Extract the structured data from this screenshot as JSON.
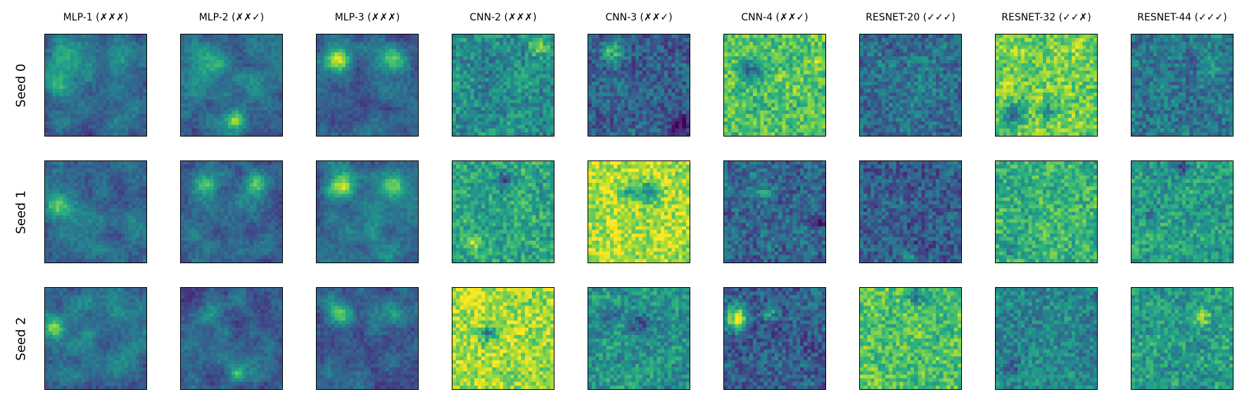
{
  "chart_data": {
    "type": "heatmap",
    "colormap": "viridis",
    "grid": false,
    "ticks": false,
    "columns": [
      "MLP-1 (✗✗✗)",
      "MLP-2 (✗✗✓)",
      "MLP-3 (✗✗✗)",
      "CNN-2 (✗✗✗)",
      "CNN-3 (✗✗✓)",
      "CNN-4 (✗✗✓)",
      "RESNET-20 (✓✓✓)",
      "RESNET-32 (✓✓✗)",
      "RESNET-44 (✓✓✓)"
    ],
    "rows": [
      "Seed 0",
      "Seed 1",
      "Seed 2"
    ],
    "grid_size": 28,
    "panels": [
      [
        {
          "mean": 0.35,
          "texture": "smooth",
          "spots": [
            [
              0.2,
              0.3,
              0.12,
              0.25
            ],
            [
              0.75,
              0.25,
              0.1,
              0.2
            ],
            [
              0.12,
              0.5,
              0.08,
              0.3
            ]
          ]
        },
        {
          "mean": 0.38,
          "texture": "smooth",
          "spots": [
            [
              0.55,
              0.85,
              0.06,
              0.55
            ],
            [
              0.3,
              0.3,
              0.1,
              0.25
            ]
          ]
        },
        {
          "mean": 0.33,
          "texture": "smooth",
          "spots": [
            [
              0.22,
              0.25,
              0.08,
              0.55
            ],
            [
              0.75,
              0.25,
              0.08,
              0.4
            ],
            [
              0.5,
              0.7,
              0.1,
              -0.2
            ]
          ]
        },
        {
          "mean": 0.5,
          "texture": "fine",
          "spots": [
            [
              0.85,
              0.12,
              0.07,
              0.3
            ],
            [
              0.3,
              0.35,
              0.08,
              -0.15
            ]
          ]
        },
        {
          "mean": 0.3,
          "texture": "fine",
          "spots": [
            [
              0.25,
              0.15,
              0.08,
              0.35
            ],
            [
              0.9,
              0.9,
              0.07,
              -0.3
            ]
          ]
        },
        {
          "mean": 0.72,
          "texture": "fine",
          "spots": [
            [
              0.25,
              0.35,
              0.09,
              -0.35
            ],
            [
              0.9,
              0.3,
              0.08,
              0.15
            ]
          ]
        },
        {
          "mean": 0.35,
          "texture": "fine",
          "spots": [
            [
              0.5,
              0.5,
              0.2,
              0.05
            ]
          ]
        },
        {
          "mean": 0.78,
          "texture": "fine",
          "spots": [
            [
              0.15,
              0.8,
              0.08,
              -0.35
            ],
            [
              0.5,
              0.75,
              0.06,
              -0.3
            ]
          ]
        },
        {
          "mean": 0.4,
          "texture": "fine",
          "spots": [
            [
              0.8,
              0.3,
              0.08,
              0.15
            ]
          ]
        }
      ],
      [
        {
          "mean": 0.35,
          "texture": "smooth",
          "spots": [
            [
              0.12,
              0.45,
              0.09,
              0.5
            ],
            [
              0.8,
              0.3,
              0.1,
              -0.1
            ]
          ]
        },
        {
          "mean": 0.33,
          "texture": "smooth",
          "spots": [
            [
              0.25,
              0.22,
              0.08,
              0.4
            ],
            [
              0.75,
              0.22,
              0.08,
              0.4
            ]
          ]
        },
        {
          "mean": 0.4,
          "texture": "smooth",
          "spots": [
            [
              0.25,
              0.25,
              0.08,
              0.45
            ],
            [
              0.75,
              0.25,
              0.08,
              0.4
            ]
          ]
        },
        {
          "mean": 0.6,
          "texture": "fine",
          "spots": [
            [
              0.5,
              0.2,
              0.06,
              -0.3
            ],
            [
              0.2,
              0.8,
              0.06,
              0.25
            ]
          ]
        },
        {
          "mean": 0.88,
          "texture": "fine",
          "spots": [
            [
              0.6,
              0.3,
              0.08,
              -0.45
            ],
            [
              0.4,
              0.3,
              0.06,
              -0.3
            ]
          ]
        },
        {
          "mean": 0.33,
          "texture": "fine",
          "spots": [
            [
              0.4,
              0.3,
              0.06,
              0.2
            ],
            [
              0.93,
              0.6,
              0.05,
              -0.25
            ]
          ]
        },
        {
          "mean": 0.3,
          "texture": "fine",
          "spots": [
            [
              0.5,
              0.95,
              0.05,
              0.2
            ]
          ]
        },
        {
          "mean": 0.65,
          "texture": "fine",
          "spots": [
            [
              0.15,
              0.85,
              0.06,
              -0.25
            ]
          ]
        },
        {
          "mean": 0.55,
          "texture": "fine",
          "spots": [
            [
              0.5,
              0.05,
              0.05,
              -0.35
            ],
            [
              0.2,
              0.55,
              0.05,
              -0.2
            ]
          ]
        }
      ],
      [
        {
          "mean": 0.38,
          "texture": "smooth",
          "spots": [
            [
              0.1,
              0.4,
              0.07,
              0.5
            ]
          ]
        },
        {
          "mean": 0.3,
          "texture": "smooth",
          "spots": [
            [
              0.55,
              0.85,
              0.06,
              0.45
            ],
            [
              0.3,
              0.25,
              0.08,
              0.2
            ]
          ]
        },
        {
          "mean": 0.32,
          "texture": "smooth",
          "spots": [
            [
              0.25,
              0.25,
              0.08,
              0.35
            ],
            [
              0.75,
              0.25,
              0.08,
              0.35
            ]
          ]
        },
        {
          "mean": 0.85,
          "texture": "fine",
          "spots": [
            [
              0.35,
              0.45,
              0.05,
              -0.45
            ],
            [
              0.15,
              0.1,
              0.07,
              0.15
            ]
          ]
        },
        {
          "mean": 0.5,
          "texture": "fine",
          "spots": [
            [
              0.5,
              0.35,
              0.07,
              -0.25
            ],
            [
              0.2,
              0.25,
              0.05,
              -0.2
            ]
          ]
        },
        {
          "mean": 0.3,
          "texture": "fine",
          "spots": [
            [
              0.13,
              0.3,
              0.08,
              0.6
            ],
            [
              0.45,
              0.25,
              0.05,
              0.3
            ]
          ]
        },
        {
          "mean": 0.72,
          "texture": "fine",
          "spots": [
            [
              0.55,
              0.07,
              0.05,
              -0.4
            ]
          ]
        },
        {
          "mean": 0.45,
          "texture": "fine",
          "spots": [
            [
              0.15,
              0.8,
              0.06,
              -0.2
            ]
          ]
        },
        {
          "mean": 0.55,
          "texture": "fine",
          "spots": [
            [
              0.7,
              0.3,
              0.06,
              0.3
            ]
          ]
        }
      ]
    ]
  }
}
